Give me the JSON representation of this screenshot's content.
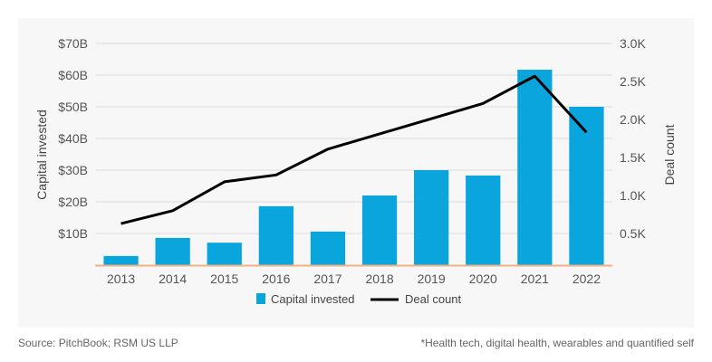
{
  "chart_data": {
    "type": "bar",
    "title": "",
    "categories": [
      "2013",
      "2014",
      "2015",
      "2016",
      "2017",
      "2018",
      "2019",
      "2020",
      "2021",
      "2022"
    ],
    "series": [
      {
        "name": "Capital invested",
        "type": "bar",
        "axis": "left",
        "unit": "$B",
        "color": "#0aa5dd",
        "values": [
          2.9,
          8.6,
          7.1,
          18.6,
          10.6,
          22.0,
          30.0,
          28.3,
          61.7,
          50.0
        ]
      },
      {
        "name": "Deal count",
        "type": "line",
        "axis": "right",
        "unit": "K",
        "color": "#000000",
        "values": [
          0.63,
          0.8,
          1.18,
          1.27,
          1.61,
          1.81,
          2.01,
          2.21,
          2.57,
          1.83
        ]
      }
    ],
    "ylabel": "Capital invested",
    "y2label": "Deal count",
    "yticks": [
      "$10B",
      "$20B",
      "$30B",
      "$40B",
      "$50B",
      "$60B",
      "$70B"
    ],
    "ytick_values": [
      10,
      20,
      30,
      40,
      50,
      60,
      70
    ],
    "ylim": [
      0,
      70
    ],
    "y2ticks": [
      "0.5K",
      "1.0K",
      "1.5K",
      "2.0K",
      "2.5K",
      "3.0K"
    ],
    "y2tick_values": [
      0.5,
      1.0,
      1.5,
      2.0,
      2.5,
      3.0
    ],
    "y2lim_labeled": [
      0.5,
      3.0
    ],
    "grid": true,
    "legend": "bottom-center",
    "baseline_color": "#f0b183",
    "grid_color": "#dddddd"
  },
  "footer": {
    "source": "Source: PitchBook; RSM US LLP",
    "note": "*Health tech, digital health, wearables and quantified self"
  }
}
